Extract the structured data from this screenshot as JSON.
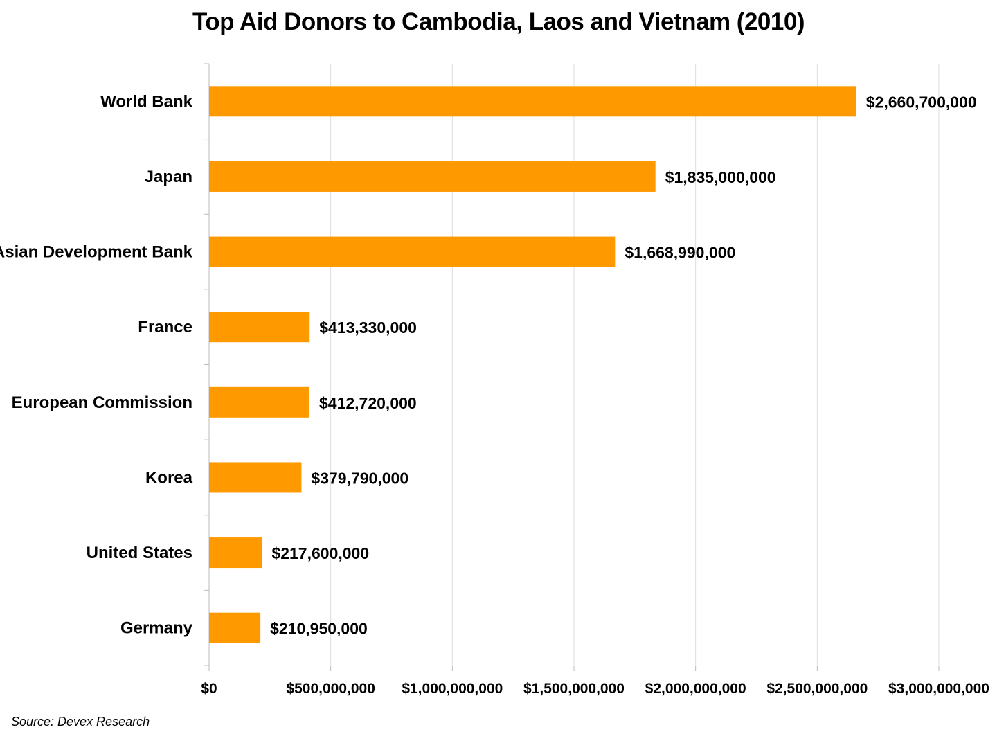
{
  "chart_data": {
    "type": "bar",
    "orientation": "horizontal",
    "title": "Top Aid Donors to Cambodia, Laos and Vietnam (2010)",
    "xlabel": "",
    "ylabel": "",
    "categories": [
      "World Bank",
      "Japan",
      "Asian Development Bank",
      "France",
      "European Commission",
      "Korea",
      "United States",
      "Germany"
    ],
    "values": [
      2660700000,
      1835000000,
      1668990000,
      413330000,
      412720000,
      379790000,
      217600000,
      210950000
    ],
    "value_labels": [
      "$2,660,700,000",
      "$1,835,000,000",
      "$1,668,990,000",
      "$413,330,000",
      "$412,720,000",
      "$379,790,000",
      "$217,600,000",
      "$210,950,000"
    ],
    "xlim": [
      0,
      3000000000
    ],
    "x_ticks": [
      0,
      500000000,
      1000000000,
      1500000000,
      2000000000,
      2500000000,
      3000000000
    ],
    "x_tick_labels": [
      "$0",
      "$500,000,000",
      "$1,000,000,000",
      "$1,500,000,000",
      "$2,000,000,000",
      "$2,500,000,000",
      "$3,000,000,000"
    ],
    "grid": true,
    "legend": "none",
    "bar_color": "#FF9900",
    "grid_color": "#DDDDDD"
  },
  "source_note": "Source: Devex Research"
}
